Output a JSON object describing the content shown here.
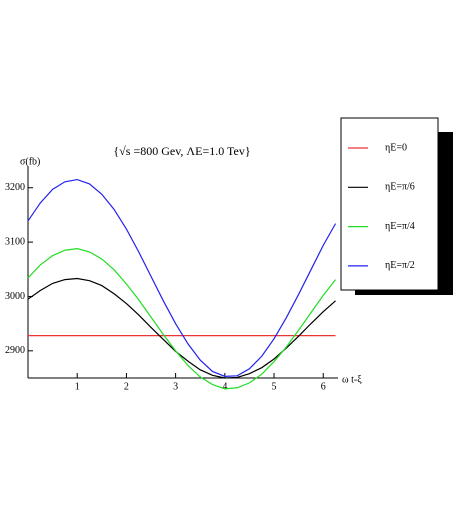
{
  "chart_data": {
    "type": "line",
    "title": "{√s =800 Gev, ΛE=1.0 Tev}",
    "y_label": "σ(fb)",
    "x_label": "ω t-ξ",
    "x": [
      0,
      0.25,
      0.5,
      0.75,
      1,
      1.25,
      1.5,
      1.75,
      2,
      2.25,
      2.5,
      2.75,
      3,
      3.25,
      3.5,
      3.75,
      4,
      4.25,
      4.5,
      4.75,
      5,
      5.25,
      5.5,
      5.75,
      6,
      6.25
    ],
    "series": [
      {
        "name": "ηE=0",
        "color": "#ee3333",
        "values": [
          2928,
          2928,
          2928,
          2928,
          2928,
          2928,
          2928,
          2928,
          2928,
          2928,
          2928,
          2928,
          2928,
          2928,
          2928,
          2928,
          2928,
          2928,
          2928,
          2928,
          2928,
          2928,
          2928,
          2928,
          2928,
          2928
        ]
      },
      {
        "name": "ηE=π/6",
        "color": "#000000",
        "values": [
          2995,
          3011,
          3024,
          3031,
          3033,
          3029,
          3020,
          3005,
          2987,
          2966,
          2943,
          2921,
          2899,
          2881,
          2865,
          2855,
          2850,
          2851,
          2858,
          2869,
          2885,
          2905,
          2927,
          2950,
          2972,
          2992
        ]
      },
      {
        "name": "ηE=π/4",
        "color": "#22dd22",
        "values": [
          3034,
          3058,
          3075,
          3085,
          3088,
          3082,
          3069,
          3049,
          3023,
          2994,
          2962,
          2930,
          2900,
          2873,
          2852,
          2838,
          2830,
          2832,
          2841,
          2857,
          2880,
          2907,
          2938,
          2970,
          3002,
          3031
        ]
      },
      {
        "name": "ηE=π/2",
        "color": "#2222ee",
        "values": [
          3139,
          3172,
          3197,
          3211,
          3215,
          3207,
          3188,
          3160,
          3124,
          3082,
          3037,
          2992,
          2950,
          2913,
          2883,
          2862,
          2853,
          2854,
          2867,
          2890,
          2922,
          2961,
          3004,
          3049,
          3094,
          3134
        ]
      }
    ],
    "xlim": [
      0,
      6.3
    ],
    "xticks": [
      1,
      2,
      3,
      4,
      5,
      6
    ],
    "ylim": [
      2850,
      3240
    ],
    "yticks": [
      2900,
      3000,
      3100,
      3200
    ],
    "legend": "right"
  }
}
